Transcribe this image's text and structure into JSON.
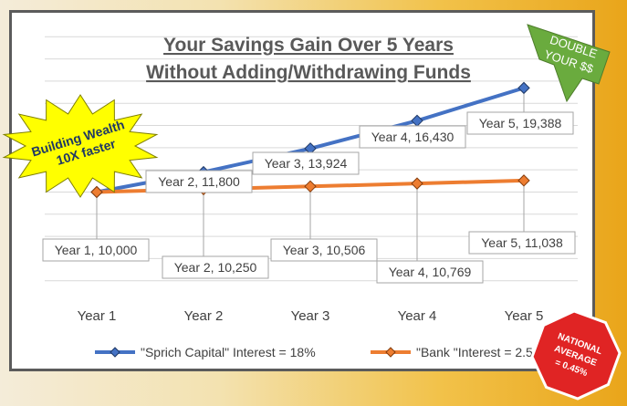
{
  "chart_data": {
    "type": "line",
    "title": [
      "Your Savings Gain Over 5 Years",
      " Without Adding/Withdrawing Funds"
    ],
    "categories": [
      "Year 1",
      "Year 2",
      "Year 3",
      "Year 4",
      "Year 5"
    ],
    "series": [
      {
        "name": "\"Sprich Capital\" Interest = 18%",
        "values": [
          10000,
          11800,
          13924,
          16430,
          19388
        ],
        "labels": [
          "Year 1, 10,000",
          "Year 2, 11,800",
          "Year 3, 13,924",
          "Year 4, 16,430",
          "Year 5, 19,388"
        ],
        "color": "#4472c4",
        "marker": "diamond"
      },
      {
        "name": "\"Bank \"Interest = 2.5%",
        "values": [
          10000,
          10250,
          10506,
          10769,
          11038
        ],
        "labels": [
          "Year 1, 10,000",
          "Year 2, 10,250",
          "Year 3, 10,506",
          "Year 4, 10,769",
          "Year 5, 11,038"
        ],
        "color": "#ed7d31",
        "marker": "diamond"
      }
    ],
    "ylim": [
      0,
      26000
    ],
    "grid": true,
    "legend_position": "bottom"
  },
  "callouts": {
    "starburst": [
      "Building Wealth",
      "10X faster"
    ],
    "arrow": [
      "DOUBLE",
      "YOUR $$"
    ],
    "stop_sign": [
      "NATIONAL",
      "AVERAGE",
      "= 0.45%"
    ]
  },
  "colors": {
    "sprich": "#4472c4",
    "bank": "#ed7d31",
    "starburst": "#ffff00",
    "arrow": "#6aab3e",
    "stop_sign": "#e02424"
  }
}
